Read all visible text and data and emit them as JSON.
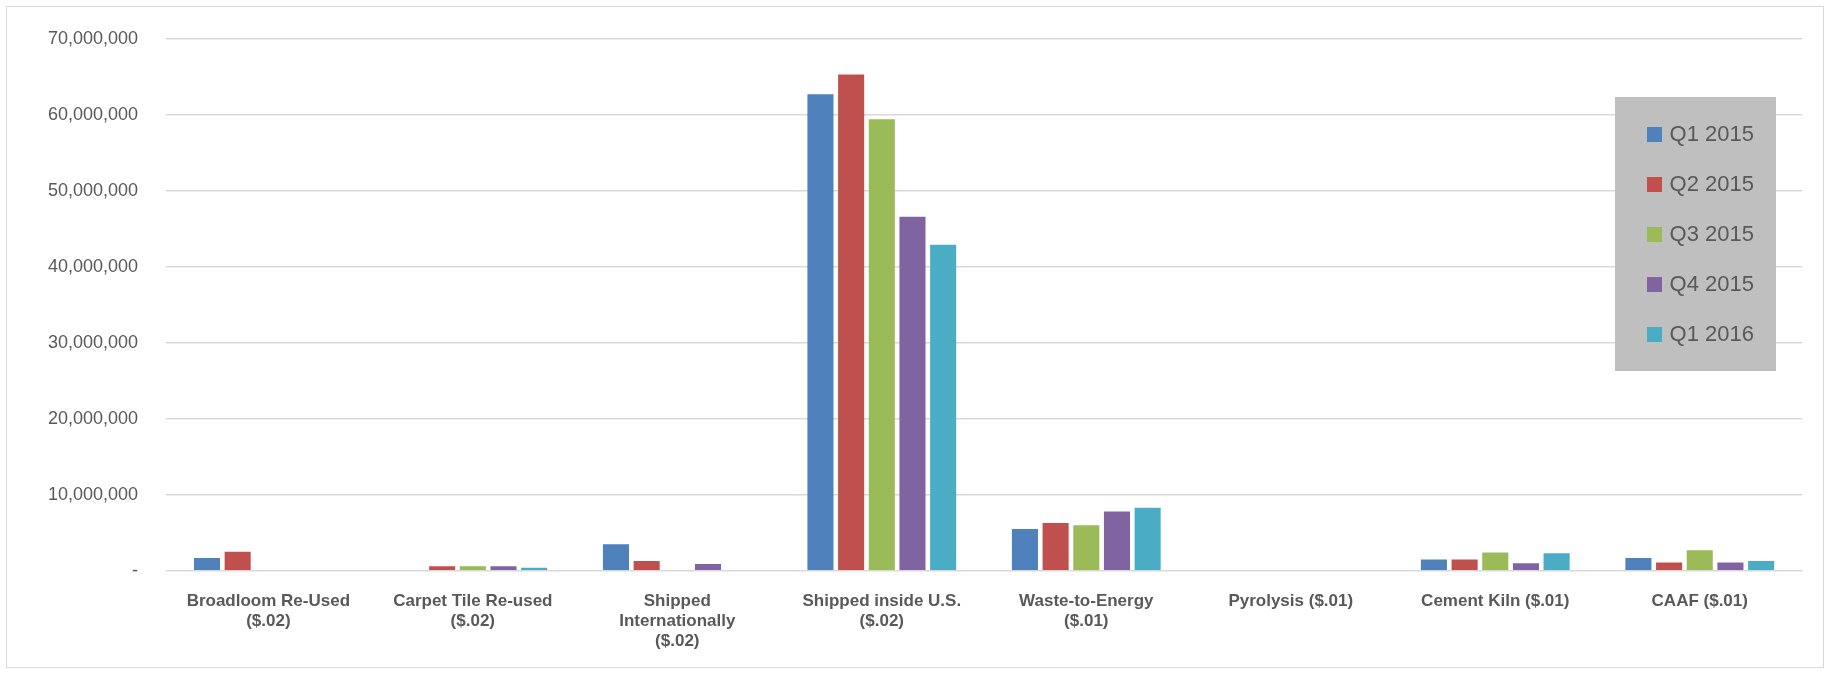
{
  "chart_data": {
    "type": "bar",
    "categories": [
      "Broadloom Re-Used ($.02)",
      "Carpet Tile Re-used ($.02)",
      "Shipped Internationally ($.02)",
      "Shipped inside U.S. ($.02)",
      "Waste-to-Energy ($.01)",
      "Pyrolysis ($.01)",
      "Cement Kiln ($.01)",
      "CAAF ($.01)"
    ],
    "series": [
      {
        "name": "Q1 2015",
        "color": "#4f81bd",
        "values": [
          1700000,
          0,
          3500000,
          62700000,
          5500000,
          0,
          1500000,
          1700000
        ]
      },
      {
        "name": "Q2 2015",
        "color": "#c0504d",
        "values": [
          2500000,
          600000,
          1300000,
          65300000,
          6300000,
          0,
          1500000,
          1100000
        ]
      },
      {
        "name": "Q3 2015",
        "color": "#9bbb59",
        "values": [
          0,
          600000,
          0,
          59400000,
          6000000,
          0,
          2400000,
          2700000
        ]
      },
      {
        "name": "Q4 2015",
        "color": "#8064a2",
        "values": [
          0,
          600000,
          900000,
          46600000,
          7800000,
          0,
          1000000,
          1100000
        ]
      },
      {
        "name": "Q1 2016",
        "color": "#4bacc6",
        "values": [
          0,
          400000,
          0,
          42900000,
          8300000,
          0,
          2300000,
          1300000
        ]
      }
    ],
    "ylim": [
      0,
      70000000
    ],
    "yticks": [
      {
        "value": 0,
        "label": "-"
      },
      {
        "value": 10000000,
        "label": "10,000,000"
      },
      {
        "value": 20000000,
        "label": "20,000,000"
      },
      {
        "value": 30000000,
        "label": "30,000,000"
      },
      {
        "value": 40000000,
        "label": "40,000,000"
      },
      {
        "value": 50000000,
        "label": "50,000,000"
      },
      {
        "value": 60000000,
        "label": "60,000,000"
      },
      {
        "value": 70000000,
        "label": "70,000,000"
      }
    ],
    "grid": "y",
    "legend": "top right"
  }
}
